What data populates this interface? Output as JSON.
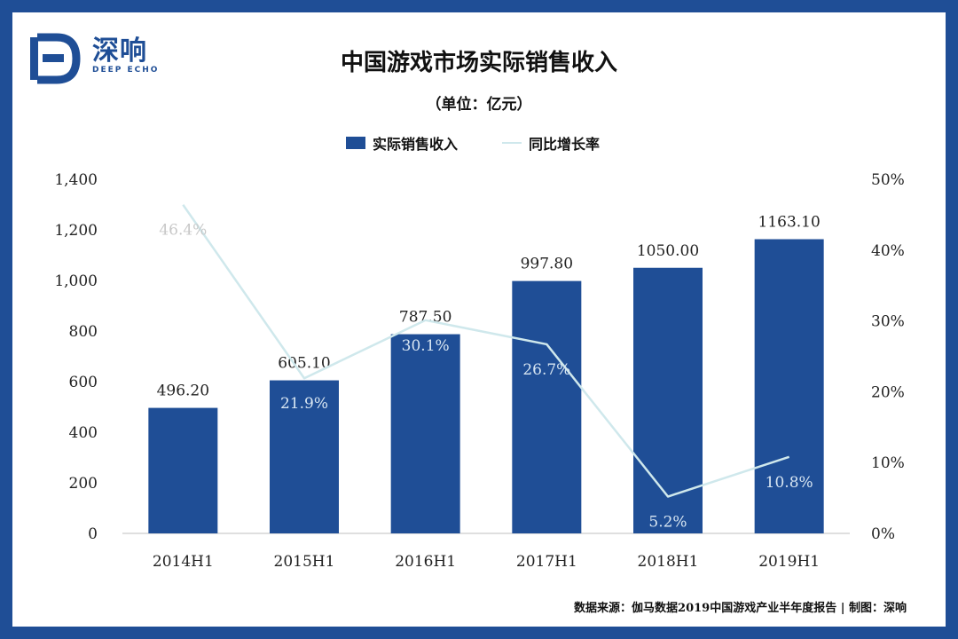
{
  "brand": {
    "name": "深响",
    "sub": "DEEP ECHO"
  },
  "title": "中国游戏市场实际销售收入",
  "unit": "（单位：亿元）",
  "source": "数据来源：伽马数据2019中国游戏产业半年度报告 | 制图：深响",
  "colors": {
    "bar": "#1f4e96",
    "line": "#cfe8ec",
    "frame": "#1f4e96"
  },
  "chart_data": {
    "type": "bar",
    "categories": [
      "2014H1",
      "2015H1",
      "2016H1",
      "2017H1",
      "2018H1",
      "2019H1"
    ],
    "series": [
      {
        "name": "实际销售收入",
        "type": "bar",
        "axis": "left",
        "values": [
          496.2,
          605.1,
          787.5,
          997.8,
          1050.0,
          1163.1
        ],
        "labels": [
          "496.20",
          "605.10",
          "787.50",
          "997.80",
          "1050.00",
          "1163.10"
        ]
      },
      {
        "name": "同比增长率",
        "type": "line",
        "axis": "right",
        "values": [
          46.4,
          21.9,
          30.1,
          26.7,
          5.2,
          10.8
        ],
        "labels": [
          "46.4%",
          "21.9%",
          "30.1%",
          "26.7%",
          "5.2%",
          "10.8%"
        ]
      }
    ],
    "left_axis": {
      "ylim": [
        0,
        1400
      ],
      "ticks": [
        0,
        200,
        400,
        600,
        800,
        1000,
        1200,
        1400
      ],
      "tick_labels": [
        "0",
        "200",
        "400",
        "600",
        "800",
        "1,000",
        "1,200",
        "1,400"
      ]
    },
    "right_axis": {
      "ylim": [
        0,
        50
      ],
      "ticks": [
        0,
        10,
        20,
        30,
        40,
        50
      ],
      "tick_labels": [
        "0%",
        "10%",
        "20%",
        "30%",
        "40%",
        "50%"
      ]
    },
    "legend": "top-center",
    "grid": false
  }
}
